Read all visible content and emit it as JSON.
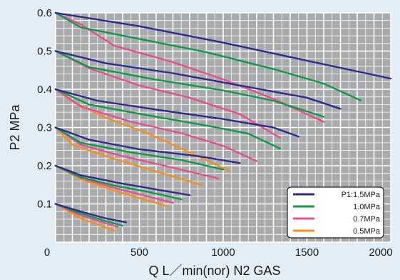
{
  "chart_data": {
    "type": "line",
    "title": "",
    "xlabel": "Q  L／min(nor)  N2 GAS",
    "ylabel": "P2  MPa",
    "xlim": [
      0,
      2000
    ],
    "ylim": [
      0,
      0.6
    ],
    "x_ticks": [
      "0",
      "500",
      "1000",
      "1500",
      "2000"
    ],
    "y_ticks": [
      "0.1",
      "0.2",
      "0.3",
      "0.4",
      "0.5",
      "0.6"
    ],
    "grid": true,
    "legend_position": "bottom-right",
    "series": [
      {
        "name": "P1:1.5MPa",
        "color": "#2b2c8c",
        "curves": [
          [
            [
              0,
              0.6
            ],
            [
              500,
              0.565
            ],
            [
              1000,
              0.522
            ],
            [
              1500,
              0.475
            ],
            [
              2000,
              0.428
            ]
          ],
          [
            [
              0,
              0.5
            ],
            [
              300,
              0.468
            ],
            [
              700,
              0.442
            ],
            [
              1100,
              0.41
            ],
            [
              1500,
              0.378
            ],
            [
              1700,
              0.349
            ]
          ],
          [
            [
              0,
              0.4
            ],
            [
              250,
              0.37
            ],
            [
              600,
              0.347
            ],
            [
              1000,
              0.322
            ],
            [
              1300,
              0.3
            ],
            [
              1450,
              0.276
            ]
          ],
          [
            [
              0,
              0.3
            ],
            [
              200,
              0.268
            ],
            [
              500,
              0.243
            ],
            [
              850,
              0.225
            ],
            [
              1100,
              0.207
            ]
          ],
          [
            [
              0,
              0.2
            ],
            [
              150,
              0.175
            ],
            [
              400,
              0.153
            ],
            [
              600,
              0.138
            ],
            [
              800,
              0.123
            ]
          ],
          [
            [
              0,
              0.1
            ],
            [
              150,
              0.08
            ],
            [
              300,
              0.062
            ],
            [
              420,
              0.052
            ]
          ]
        ]
      },
      {
        "name": "1.0MPa",
        "color": "#109a48",
        "curves": [
          [
            [
              0,
              0.6
            ],
            [
              150,
              0.562
            ],
            [
              450,
              0.536
            ],
            [
              900,
              0.497
            ],
            [
              1300,
              0.453
            ],
            [
              1600,
              0.415
            ],
            [
              1820,
              0.371
            ]
          ],
          [
            [
              0,
              0.5
            ],
            [
              200,
              0.458
            ],
            [
              600,
              0.425
            ],
            [
              1000,
              0.397
            ],
            [
              1300,
              0.37
            ],
            [
              1600,
              0.328
            ]
          ],
          [
            [
              0,
              0.4
            ],
            [
              200,
              0.36
            ],
            [
              550,
              0.332
            ],
            [
              900,
              0.305
            ],
            [
              1150,
              0.284
            ],
            [
              1340,
              0.245
            ]
          ],
          [
            [
              0,
              0.3
            ],
            [
              150,
              0.26
            ],
            [
              450,
              0.235
            ],
            [
              750,
              0.215
            ],
            [
              1000,
              0.19
            ]
          ],
          [
            [
              0,
              0.2
            ],
            [
              150,
              0.17
            ],
            [
              350,
              0.148
            ],
            [
              550,
              0.132
            ],
            [
              750,
              0.112
            ]
          ],
          [
            [
              0,
              0.1
            ],
            [
              150,
              0.075
            ],
            [
              300,
              0.055
            ],
            [
              400,
              0.043
            ]
          ]
        ]
      },
      {
        "name": "0.7MPa",
        "color": "#e5508c",
        "curves": [
          [
            [
              0,
              0.6
            ],
            [
              150,
              0.57
            ],
            [
              350,
              0.514
            ],
            [
              700,
              0.471
            ],
            [
              1000,
              0.426
            ],
            [
              1300,
              0.375
            ],
            [
              1600,
              0.315
            ]
          ],
          [
            [
              0,
              0.5
            ],
            [
              200,
              0.455
            ],
            [
              500,
              0.41
            ],
            [
              800,
              0.378
            ],
            [
              1100,
              0.335
            ],
            [
              1340,
              0.273
            ]
          ],
          [
            [
              0,
              0.4
            ],
            [
              150,
              0.355
            ],
            [
              450,
              0.315
            ],
            [
              750,
              0.285
            ],
            [
              1000,
              0.252
            ],
            [
              1200,
              0.212
            ]
          ],
          [
            [
              0,
              0.3
            ],
            [
              150,
              0.255
            ],
            [
              400,
              0.225
            ],
            [
              650,
              0.2
            ],
            [
              970,
              0.167
            ]
          ],
          [
            [
              0,
              0.2
            ],
            [
              150,
              0.168
            ],
            [
              350,
              0.142
            ],
            [
              700,
              0.103
            ]
          ],
          [
            [
              0,
              0.1
            ],
            [
              150,
              0.07
            ],
            [
              370,
              0.04
            ]
          ]
        ]
      },
      {
        "name": "0.5MPa",
        "color": "#f4901e",
        "curves": [
          [
            [
              0,
              0.4
            ],
            [
              100,
              0.368
            ],
            [
              300,
              0.325
            ],
            [
              550,
              0.285
            ],
            [
              800,
              0.235
            ],
            [
              1030,
              0.188
            ]
          ],
          [
            [
              0,
              0.3
            ],
            [
              100,
              0.255
            ],
            [
              350,
              0.218
            ],
            [
              600,
              0.185
            ],
            [
              870,
              0.15
            ]
          ],
          [
            [
              0,
              0.2
            ],
            [
              150,
              0.165
            ],
            [
              400,
              0.128
            ],
            [
              660,
              0.095
            ]
          ],
          [
            [
              0,
              0.1
            ],
            [
              150,
              0.062
            ],
            [
              350,
              0.03
            ]
          ]
        ]
      }
    ]
  }
}
